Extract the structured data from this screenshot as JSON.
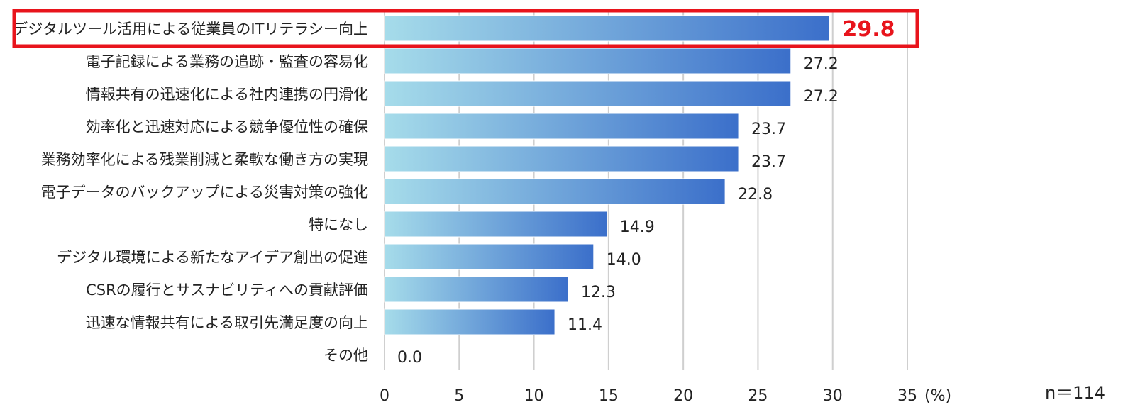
{
  "chart_data": {
    "type": "bar",
    "orientation": "horizontal",
    "categories": [
      "デジタルツール活用による従業員のITリテラシー向上",
      "電子記録による業務の追跡・監査の容易化",
      "情報共有の迅速化による社内連携の円滑化",
      "効率化と迅速対応による競争優位性の確保",
      "業務効率化による残業削減と柔軟な働き方の実現",
      "電子データのバックアップによる災害対策の強化",
      "特になし",
      "デジタル環境による新たなアイデア創出の促進",
      "CSRの履行とサスナビリティへの貢献評価",
      "迅速な情報共有による取引先満足度の向上",
      "その他"
    ],
    "values": [
      29.8,
      27.2,
      27.2,
      23.7,
      23.7,
      22.8,
      14.9,
      14.0,
      12.3,
      11.4,
      0.0
    ],
    "value_labels": [
      "29.8",
      "27.2",
      "27.2",
      "23.7",
      "23.7",
      "22.8",
      "14.9",
      "14.0",
      "12.3",
      "11.4",
      "0.0"
    ],
    "highlight_index": 0,
    "xlim": [
      0,
      35
    ],
    "xticks": [
      "0",
      "5",
      "10",
      "15",
      "20",
      "25",
      "30",
      "35"
    ],
    "x_unit": "(%)",
    "grid": true,
    "sample_size": "n＝114",
    "colors": {
      "bar_start": "#a6dcea",
      "bar_end": "#3b6fca",
      "highlight": "#e8141c",
      "grid": "#cfcfcf"
    }
  }
}
